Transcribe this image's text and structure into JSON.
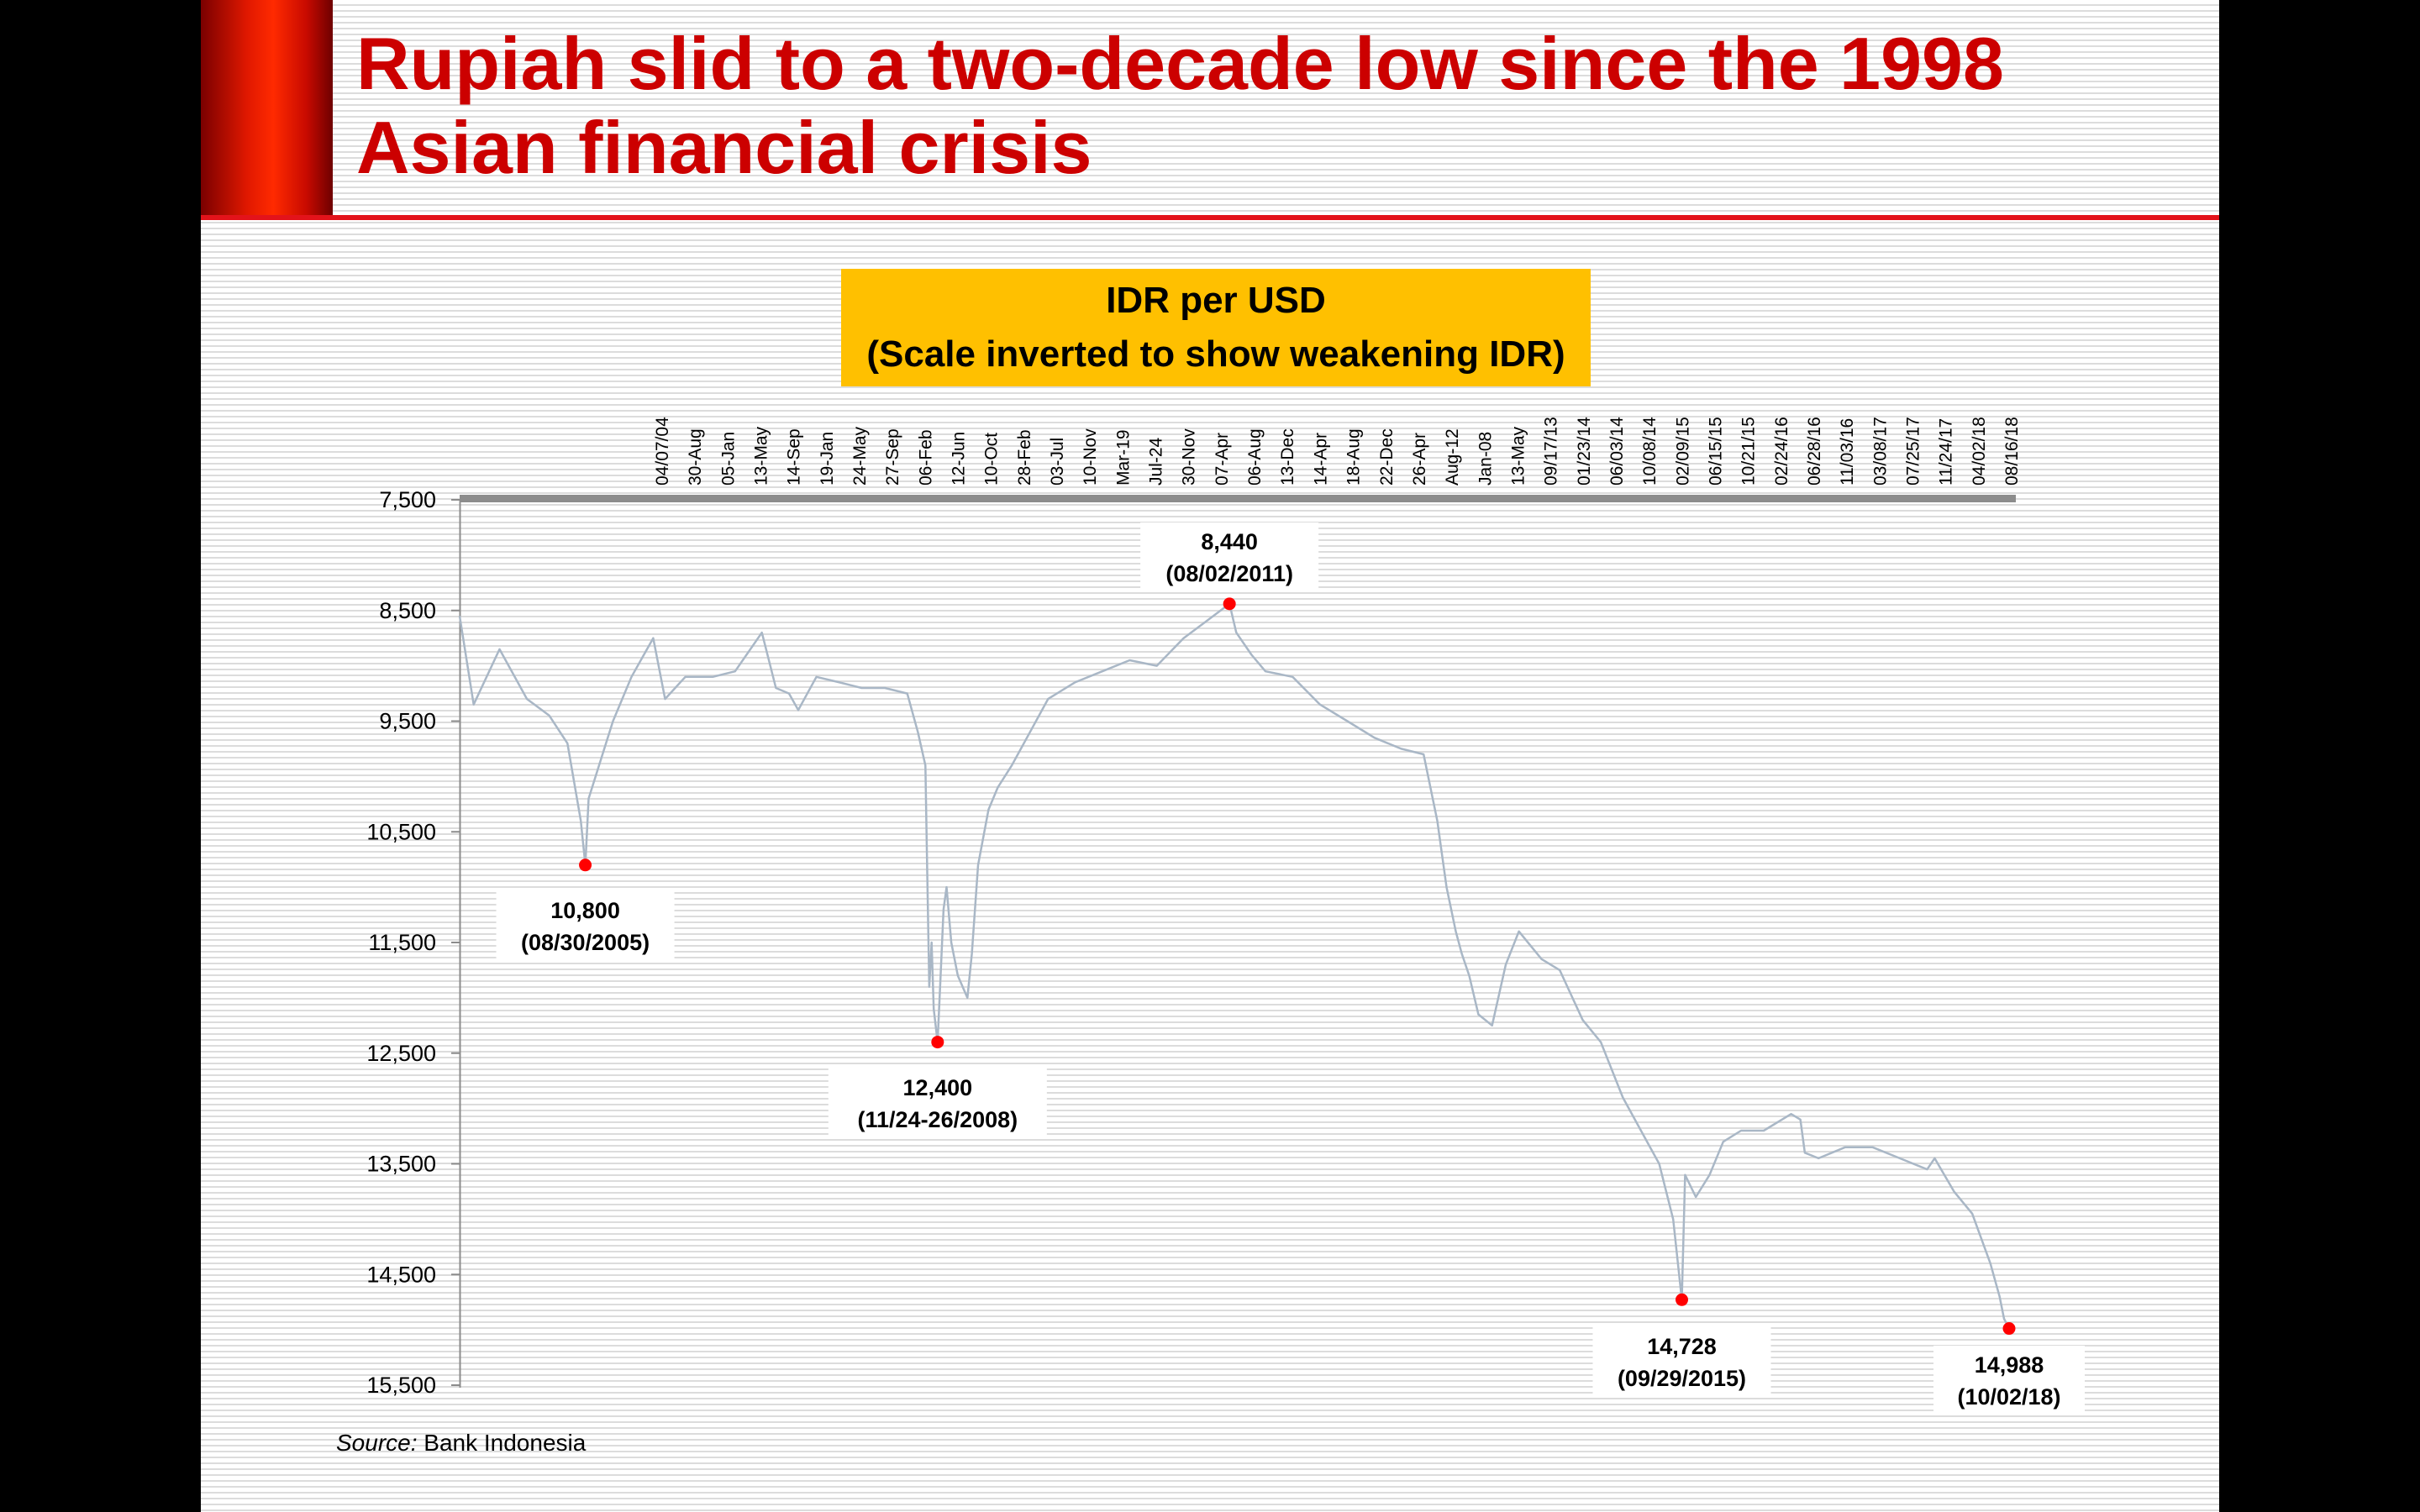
{
  "slide": {
    "title": "Rupiah slid to a two-decade low since the 1998 Asian financial crisis",
    "colors": {
      "title": "#cc0000",
      "accent": "#e3131b",
      "title_box": "#ffc000",
      "series": "#a9b7c6",
      "marker": "#ff0000"
    }
  },
  "chart_data": {
    "type": "line",
    "title_lines": [
      "IDR per USD",
      "(Scale inverted to show weakening IDR)"
    ],
    "y_axis": {
      "inverted": true,
      "ylim": [
        7500,
        15500
      ],
      "ticks": [
        "7,500",
        "8,500",
        "9,500",
        "10,500",
        "11,500",
        "12,500",
        "13,500",
        "14,500",
        "15,500"
      ],
      "position": "left"
    },
    "x_axis": {
      "position": "top",
      "tick_labels": [
        "04/07/04",
        "30-Aug",
        "05-Jan",
        "13-May",
        "14-Sep",
        "19-Jan",
        "24-May",
        "27-Sep",
        "06-Feb",
        "12-Jun",
        "10-Oct",
        "28-Feb",
        "03-Jul",
        "10-Nov",
        "Mar-19",
        "Jul-24",
        "30-Nov",
        "07-Apr",
        "06-Aug",
        "13-Dec",
        "14-Apr",
        "18-Aug",
        "22-Dec",
        "26-Apr",
        "Aug-12",
        "Jan-08",
        "13-May",
        "09/17/13",
        "01/23/14",
        "06/03/14",
        "10/08/14",
        "02/09/15",
        "06/15/15",
        "10/21/15",
        "02/24/16",
        "06/28/16",
        "11/03/16",
        "03/08/17",
        "07/25/17",
        "11/24/17",
        "04/02/18",
        "08/16/18"
      ]
    },
    "grid": false,
    "legend": "none",
    "series": [
      {
        "x": [
          "2004-07-04",
          "2004-08-20",
          "2004-11-15",
          "2005-02-15",
          "2005-05-01",
          "2005-07-01",
          "2005-08-15",
          "2005-08-30",
          "2005-09-10",
          "2005-10-15",
          "2005-12-01",
          "2006-02-01",
          "2006-04-15",
          "2006-05-25",
          "2006-08-01",
          "2006-11-01",
          "2007-01-15",
          "2007-04-15",
          "2007-06-01",
          "2007-07-15",
          "2007-08-15",
          "2007-10-15",
          "2008-01-01",
          "2008-03-15",
          "2008-06-01",
          "2008-08-15",
          "2008-09-20",
          "2008-10-15",
          "2008-10-20",
          "2008-10-28",
          "2008-11-05",
          "2008-11-12",
          "2008-11-25",
          "2008-12-05",
          "2008-12-15",
          "2008-12-25",
          "2009-01-10",
          "2009-02-01",
          "2009-03-05",
          "2009-03-20",
          "2009-04-10",
          "2009-05-15",
          "2009-06-15",
          "2009-08-01",
          "2009-10-01",
          "2009-12-01",
          "2010-03-01",
          "2010-06-01",
          "2010-09-01",
          "2010-12-01",
          "2011-03-01",
          "2011-05-15",
          "2011-08-02",
          "2011-08-25",
          "2011-10-15",
          "2011-12-01",
          "2012-03-01",
          "2012-06-01",
          "2012-09-01",
          "2012-12-01",
          "2013-03-01",
          "2013-05-15",
          "2013-06-30",
          "2013-07-31",
          "2013-08-31",
          "2013-09-20",
          "2013-10-15",
          "2013-11-15",
          "2013-12-31",
          "2014-02-15",
          "2014-03-31",
          "2014-06-15",
          "2014-08-15",
          "2014-10-31",
          "2014-12-31",
          "2015-03-15",
          "2015-05-15",
          "2015-07-15",
          "2015-08-31",
          "2015-09-29",
          "2015-10-10",
          "2015-11-15",
          "2015-12-31",
          "2016-02-15",
          "2016-04-15",
          "2016-06-30",
          "2016-09-30",
          "2016-10-31",
          "2016-11-15",
          "2016-12-31",
          "2017-03-31",
          "2017-06-30",
          "2017-09-30",
          "2017-12-31",
          "2018-01-25",
          "2018-03-31",
          "2018-05-31",
          "2018-07-31",
          "2018-08-31",
          "2018-09-15",
          "2018-10-02"
        ],
        "values": [
          8550,
          9350,
          8850,
          9300,
          9450,
          9700,
          10400,
          10800,
          10200,
          9900,
          9500,
          9100,
          8750,
          9300,
          9100,
          9100,
          9050,
          8700,
          9200,
          9250,
          9400,
          9100,
          9150,
          9200,
          9200,
          9250,
          9600,
          9900,
          10700,
          11900,
          11500,
          12100,
          12400,
          11800,
          11200,
          11000,
          11500,
          11800,
          12000,
          11600,
          10800,
          10300,
          10100,
          9900,
          9600,
          9300,
          9150,
          9050,
          8950,
          9000,
          8750,
          8600,
          8440,
          8700,
          8900,
          9050,
          9100,
          9350,
          9500,
          9650,
          9750,
          9800,
          10400,
          11000,
          11400,
          11600,
          11800,
          12150,
          12250,
          11700,
          11400,
          11650,
          11750,
          12200,
          12400,
          12900,
          13200,
          13500,
          14000,
          14728,
          13600,
          13800,
          13600,
          13300,
          13200,
          13200,
          13050,
          13100,
          13400,
          13450,
          13350,
          13350,
          13450,
          13550,
          13450,
          13750,
          13950,
          14400,
          14700,
          14900,
          14988
        ]
      }
    ],
    "annotations": [
      {
        "line1": "10,800",
        "line2": "(08/30/2005)",
        "x": "2005-08-30",
        "y": 10800
      },
      {
        "line1": "12,400",
        "line2": "(11/24-26/2008)",
        "x": "2008-11-25",
        "y": 12400
      },
      {
        "line1": "8,440",
        "line2": "(08/02/2011)",
        "x": "2011-08-02",
        "y": 8440
      },
      {
        "line1": "14,728",
        "line2": "(09/29/2015)",
        "x": "2015-09-29",
        "y": 14728
      },
      {
        "line1": "14,988",
        "line2": "(10/02/18)",
        "x": "2018-10-02",
        "y": 14988
      }
    ]
  },
  "source": {
    "label": "Source:",
    "text": " Bank Indonesia"
  }
}
